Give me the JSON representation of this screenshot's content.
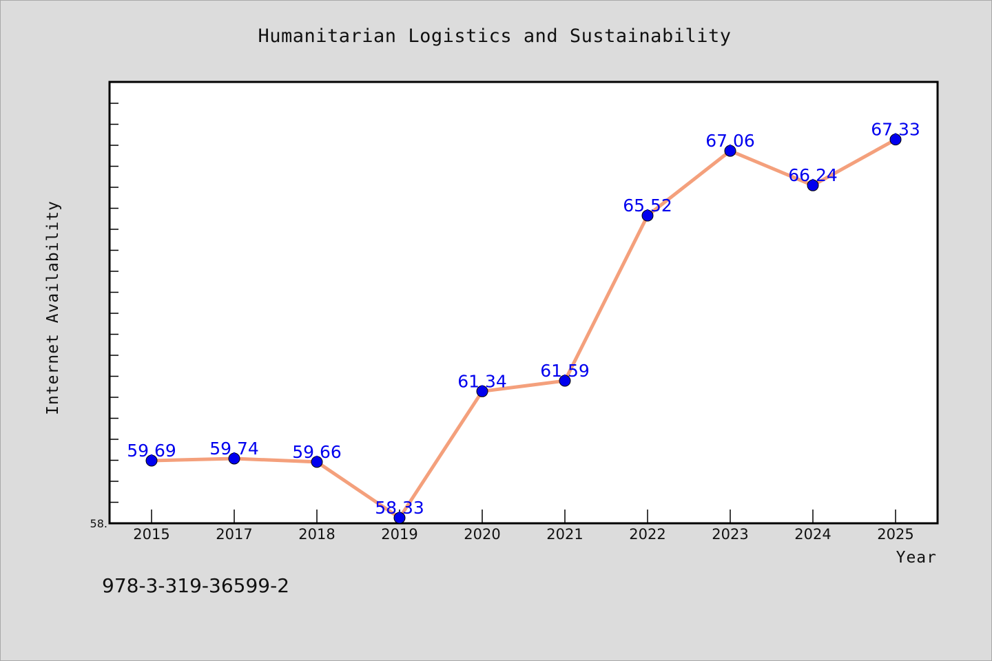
{
  "chart_data": {
    "type": "line",
    "title": "Humanitarian Logistics and Sustainability",
    "xlabel": "Year",
    "ylabel": "Internet Availability",
    "categories": [
      "2015",
      "2017",
      "2018",
      "2019",
      "2020",
      "2021",
      "2022",
      "2023",
      "2024",
      "2025"
    ],
    "values": [
      59.69,
      59.74,
      59.66,
      58.33,
      61.34,
      61.59,
      65.52,
      67.06,
      66.24,
      67.33
    ],
    "data_labels": [
      "59.69",
      "59.74",
      "59.66",
      "58.33",
      "61.34",
      "61.59",
      "65.52",
      "67.06",
      "66.24",
      "67.33"
    ],
    "y_min_tick_label": "58.",
    "ylim": [
      58.2,
      68.7
    ],
    "grid": false,
    "legend": "none",
    "line_color": "#f4a07c",
    "marker_color": "#0000ee",
    "label_color": "#0000ee"
  },
  "footnote": "978-3-319-36599-2"
}
